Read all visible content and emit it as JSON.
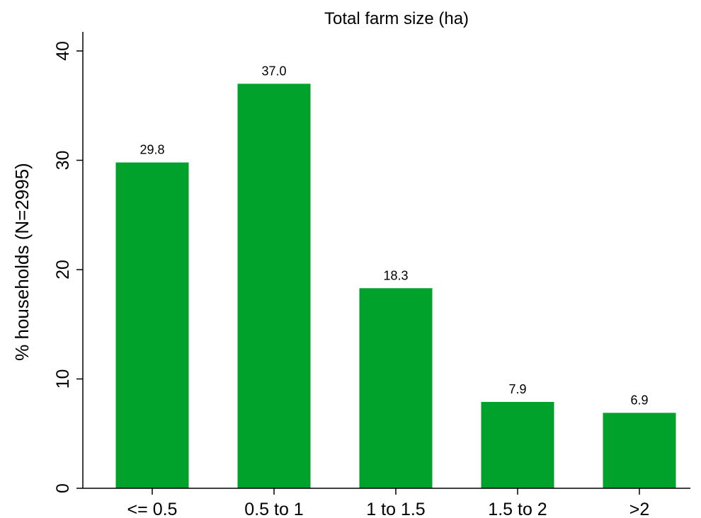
{
  "chart_data": {
    "type": "bar",
    "title": "Total farm size (ha)",
    "xlabel": "",
    "ylabel": "% households (N=2995)",
    "categories": [
      "<= 0.5",
      "0.5 to 1",
      "1 to 1.5",
      "1.5 to 2",
      ">2"
    ],
    "values": [
      29.8,
      37.0,
      18.3,
      7.9,
      6.9
    ],
    "value_labels": [
      "29.8",
      "37.0",
      "18.3",
      "7.9",
      "6.9"
    ],
    "ylim": [
      0,
      40
    ],
    "yticks": [
      0,
      10,
      20,
      30,
      40
    ],
    "ytick_labels": [
      "0",
      "10",
      "20",
      "30",
      "40"
    ],
    "grid": false,
    "legend": "none",
    "bar_color": "#00A22B"
  }
}
